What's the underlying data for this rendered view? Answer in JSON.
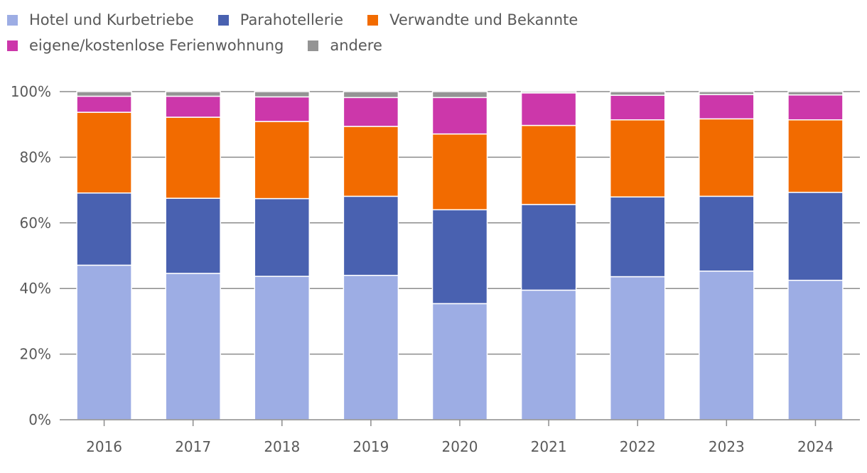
{
  "chart_data": {
    "type": "bar",
    "stacked": true,
    "percent": true,
    "categories": [
      "2016",
      "2017",
      "2018",
      "2019",
      "2020",
      "2021",
      "2022",
      "2023",
      "2024"
    ],
    "series": [
      {
        "name": "Hotel und Kurbetriebe",
        "color": "#9dade4",
        "values": [
          47.1,
          44.6,
          43.7,
          44.0,
          35.4,
          39.5,
          43.6,
          45.3,
          42.5
        ]
      },
      {
        "name": "Parahotellerie",
        "color": "#4961b0",
        "values": [
          22.0,
          22.9,
          23.7,
          24.1,
          28.6,
          26.1,
          24.3,
          22.8,
          26.8
        ]
      },
      {
        "name": "Verwandte und Bekannte",
        "color": "#f26b00",
        "values": [
          24.6,
          24.7,
          23.5,
          21.3,
          23.1,
          24.1,
          23.5,
          23.6,
          22.1
        ]
      },
      {
        "name": "eigene/kostenlose Ferienwohnung",
        "color": "#cc37aa",
        "values": [
          4.9,
          6.4,
          7.5,
          8.8,
          11.1,
          9.9,
          7.5,
          7.4,
          7.6
        ]
      },
      {
        "name": "andere",
        "color": "#949494",
        "values": [
          1.4,
          1.4,
          1.6,
          1.8,
          1.8,
          0.4,
          1.1,
          0.9,
          1.0
        ]
      }
    ],
    "legend_position": "top-left",
    "ylim": [
      0,
      100
    ],
    "yticks": [
      0,
      20,
      40,
      60,
      80,
      100
    ],
    "ytick_labels": [
      "0%",
      "20%",
      "40%",
      "60%",
      "80%",
      "100%"
    ],
    "grid": true,
    "title": "",
    "xlabel": "",
    "ylabel": ""
  }
}
